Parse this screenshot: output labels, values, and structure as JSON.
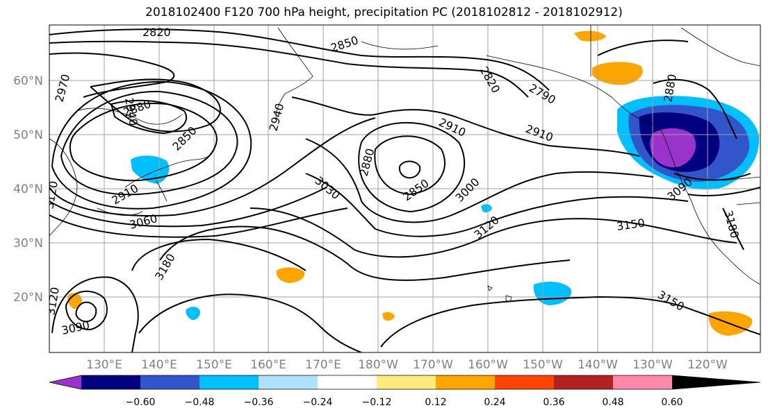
{
  "title": "2018102400 F120 700 hPa height, precipitation PC (2018102812 - 2018102912)",
  "lat_labels": [
    "60°N",
    "50°N",
    "40°N",
    "30°N",
    "20°N"
  ],
  "lon_labels": [
    "130°E",
    "140°E",
    "150°E",
    "160°E",
    "170°E",
    "180°W",
    "170°W",
    "160°W",
    "150°W",
    "140°W",
    "130°W",
    "120°W"
  ],
  "colorbar": {
    "ticks": [
      "−0.60",
      "−0.48",
      "−0.36",
      "−0.24",
      "−0.12",
      "0.12",
      "0.24",
      "0.36",
      "0.48",
      "0.60"
    ],
    "colors": [
      "#9933cc",
      "#000080",
      "#3355cc",
      "#00bfff",
      "#b0e2ff",
      "#ffffff",
      "#ffea80",
      "#ffa500",
      "#ff4500",
      "#b22222",
      "#ff88aa"
    ]
  },
  "contour_labels": [
    "2820",
    "2850",
    "2970",
    "2940",
    "2880",
    "2850",
    "2940",
    "2910",
    "3060",
    "2820",
    "2790",
    "2910",
    "2910",
    "2880",
    "2850",
    "3030",
    "3000",
    "3120",
    "3150",
    "2880",
    "3090",
    "3180",
    "3180",
    "3150",
    "3090",
    "3120",
    "3120"
  ]
}
